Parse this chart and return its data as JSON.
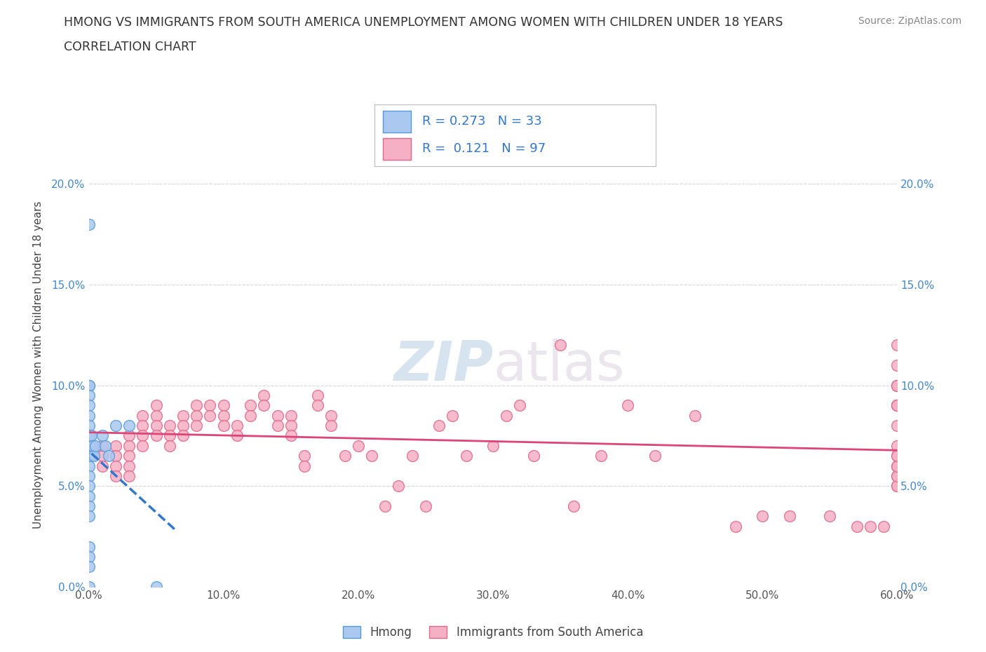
{
  "title_line1": "HMONG VS IMMIGRANTS FROM SOUTH AMERICA UNEMPLOYMENT AMONG WOMEN WITH CHILDREN UNDER 18 YEARS",
  "title_line2": "CORRELATION CHART",
  "source": "Source: ZipAtlas.com",
  "ylabel": "Unemployment Among Women with Children Under 18 years",
  "xlim": [
    0.0,
    0.6
  ],
  "ylim": [
    0.0,
    0.22
  ],
  "xticks": [
    0.0,
    0.1,
    0.2,
    0.3,
    0.4,
    0.5,
    0.6
  ],
  "yticks": [
    0.0,
    0.05,
    0.1,
    0.15,
    0.2
  ],
  "xtick_labels": [
    "0.0%",
    "10.0%",
    "20.0%",
    "30.0%",
    "40.0%",
    "50.0%",
    "60.0%"
  ],
  "ytick_labels_left": [
    "0.0%",
    "5.0%",
    "10.0%",
    "15.0%",
    "20.0%"
  ],
  "ytick_labels_right": [
    "0.0%",
    "5.0%",
    "10.0%",
    "15.0%",
    "20.0%"
  ],
  "hmong_color": "#aac8f0",
  "hmong_edge_color": "#5599dd",
  "sa_color": "#f5b0c5",
  "sa_edge_color": "#e06888",
  "hmong_line_color": "#3377cc",
  "sa_line_color": "#dd4477",
  "watermark_zip": "ZIP",
  "watermark_atlas": "atlas",
  "hmong_x": [
    0.0,
    0.0,
    0.0,
    0.0,
    0.0,
    0.0,
    0.0,
    0.0,
    0.0,
    0.0,
    0.0,
    0.0,
    0.0,
    0.0,
    0.0,
    0.0,
    0.0,
    0.0,
    0.0,
    0.0,
    0.001,
    0.001,
    0.002,
    0.002,
    0.003,
    0.004,
    0.005,
    0.01,
    0.012,
    0.015,
    0.02,
    0.03,
    0.05
  ],
  "hmong_y": [
    0.18,
    0.1,
    0.1,
    0.095,
    0.09,
    0.085,
    0.08,
    0.075,
    0.07,
    0.065,
    0.06,
    0.055,
    0.05,
    0.045,
    0.04,
    0.035,
    0.02,
    0.015,
    0.01,
    0.0,
    0.075,
    0.07,
    0.075,
    0.065,
    0.07,
    0.065,
    0.07,
    0.075,
    0.07,
    0.065,
    0.08,
    0.08,
    0.0
  ],
  "sa_x": [
    0.01,
    0.01,
    0.01,
    0.02,
    0.02,
    0.02,
    0.02,
    0.03,
    0.03,
    0.03,
    0.03,
    0.03,
    0.04,
    0.04,
    0.04,
    0.04,
    0.05,
    0.05,
    0.05,
    0.05,
    0.06,
    0.06,
    0.06,
    0.07,
    0.07,
    0.07,
    0.08,
    0.08,
    0.08,
    0.09,
    0.09,
    0.1,
    0.1,
    0.1,
    0.11,
    0.11,
    0.12,
    0.12,
    0.13,
    0.13,
    0.14,
    0.14,
    0.15,
    0.15,
    0.15,
    0.16,
    0.16,
    0.17,
    0.17,
    0.18,
    0.18,
    0.19,
    0.2,
    0.21,
    0.22,
    0.23,
    0.24,
    0.25,
    0.26,
    0.27,
    0.28,
    0.3,
    0.31,
    0.32,
    0.33,
    0.35,
    0.36,
    0.38,
    0.4,
    0.42,
    0.45,
    0.48,
    0.5,
    0.52,
    0.55,
    0.57,
    0.58,
    0.59,
    0.6,
    0.6,
    0.6,
    0.6,
    0.6,
    0.6,
    0.6,
    0.6,
    0.6,
    0.6,
    0.6,
    0.6,
    0.6,
    0.6,
    0.6,
    0.6,
    0.6,
    0.6
  ],
  "sa_y": [
    0.07,
    0.065,
    0.06,
    0.07,
    0.065,
    0.06,
    0.055,
    0.075,
    0.07,
    0.065,
    0.06,
    0.055,
    0.085,
    0.08,
    0.075,
    0.07,
    0.09,
    0.085,
    0.08,
    0.075,
    0.08,
    0.075,
    0.07,
    0.085,
    0.08,
    0.075,
    0.09,
    0.085,
    0.08,
    0.09,
    0.085,
    0.09,
    0.085,
    0.08,
    0.08,
    0.075,
    0.09,
    0.085,
    0.095,
    0.09,
    0.085,
    0.08,
    0.085,
    0.08,
    0.075,
    0.065,
    0.06,
    0.095,
    0.09,
    0.085,
    0.08,
    0.065,
    0.07,
    0.065,
    0.04,
    0.05,
    0.065,
    0.04,
    0.08,
    0.085,
    0.065,
    0.07,
    0.085,
    0.09,
    0.065,
    0.12,
    0.04,
    0.065,
    0.09,
    0.065,
    0.085,
    0.03,
    0.035,
    0.035,
    0.035,
    0.03,
    0.03,
    0.03,
    0.12,
    0.11,
    0.1,
    0.1,
    0.1,
    0.09,
    0.09,
    0.09,
    0.08,
    0.07,
    0.065,
    0.06,
    0.055,
    0.05,
    0.05,
    0.055,
    0.06,
    0.065
  ]
}
